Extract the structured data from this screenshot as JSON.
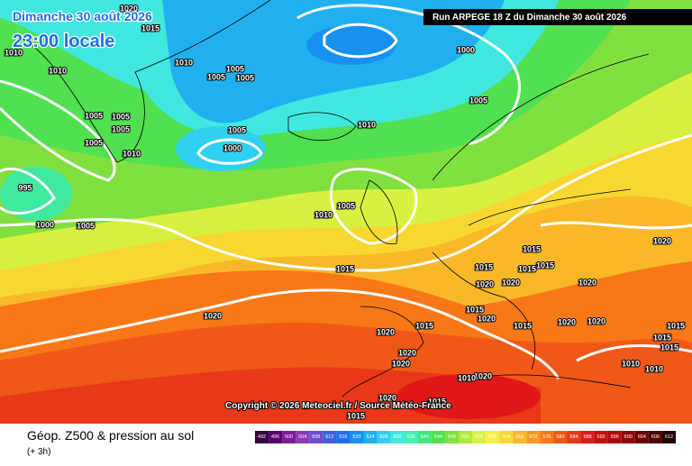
{
  "header": {
    "date": "Dimanche 30 août 2026",
    "time": "23:00 locale",
    "run": "Run ARPEGE 18 Z du Dimanche 30 août 2026"
  },
  "copyright": "Copyright © 2026 Meteociel.fr / Source Météo-France",
  "legend": {
    "title": "Géop. Z500 & pression au sol",
    "lead": "(+ 3h)",
    "scale": [
      492,
      496,
      500,
      504,
      508,
      512,
      516,
      520,
      524,
      528,
      532,
      536,
      540,
      544,
      548,
      552,
      556,
      560,
      564,
      568,
      572,
      576,
      580,
      584,
      588,
      592,
      596,
      600,
      604,
      608,
      612
    ],
    "colors": [
      "#3a0040",
      "#5a0070",
      "#7a1a9a",
      "#8a3ab8",
      "#6a50d0",
      "#4060e0",
      "#2070f0",
      "#1890f0",
      "#20b0f0",
      "#30d0f0",
      "#40e8e0",
      "#40f0b0",
      "#40e880",
      "#50e050",
      "#80e040",
      "#b0e840",
      "#d8f040",
      "#f8f040",
      "#f8d830",
      "#f8b828",
      "#f89820",
      "#f87818",
      "#f05818",
      "#e83818",
      "#e01818",
      "#c81010",
      "#b00808",
      "#900808",
      "#700404",
      "#500202",
      "#200000"
    ]
  },
  "isobars": [
    "1020",
    "1015",
    "1010",
    "1010",
    "1010",
    "1005",
    "1005",
    "1005",
    "1000",
    "1005",
    "1005",
    "1005",
    "1005",
    "1005",
    "1010",
    "1005",
    "1000",
    "1010",
    "995",
    "1000",
    "1005",
    "1005",
    "1010",
    "1015",
    "1015",
    "1015",
    "1015",
    "1015",
    "1020",
    "1020",
    "1020",
    "1020",
    "1020",
    "1015",
    "1020",
    "1015",
    "1015",
    "1020",
    "1020",
    "1015",
    "1020",
    "1015",
    "1015",
    "1020",
    "1020",
    "1010",
    "1010",
    "1020",
    "1010",
    "1020",
    "1015",
    "1015"
  ]
}
